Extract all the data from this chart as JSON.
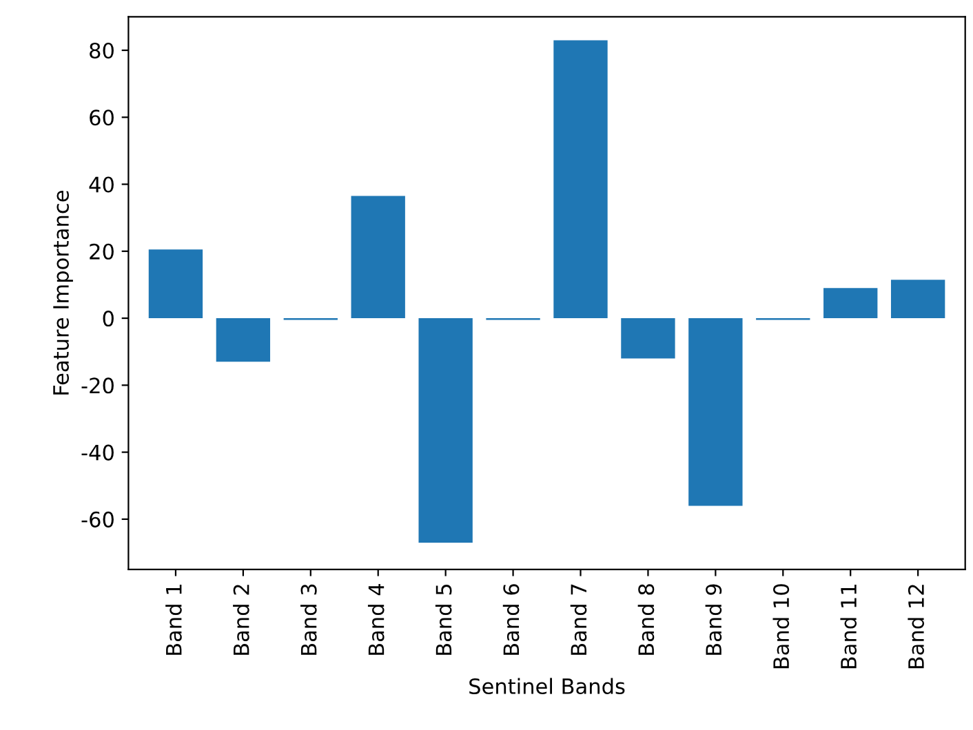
{
  "chart_data": {
    "type": "bar",
    "xlabel": "Sentinel Bands",
    "ylabel": "Feature Importance",
    "categories": [
      "Band 1",
      "Band 2",
      "Band 3",
      "Band 4",
      "Band 5",
      "Band 6",
      "Band 7",
      "Band 8",
      "Band 9",
      "Band 10",
      "Band 11",
      "Band 12"
    ],
    "values": [
      20.5,
      -13,
      -0.5,
      36.5,
      -67,
      -0.5,
      83,
      -12,
      -56,
      -0.5,
      9,
      11.5
    ],
    "color": "#1f77b4",
    "ylim": [
      -75,
      90
    ],
    "yticks": [
      -60,
      -40,
      -20,
      0,
      20,
      40,
      60,
      80
    ],
    "grid": false
  }
}
